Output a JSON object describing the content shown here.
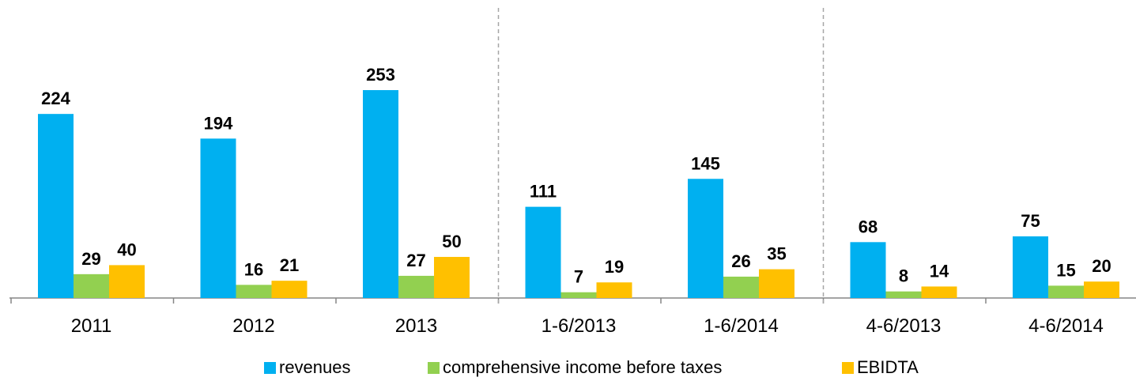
{
  "chart_data": {
    "type": "bar",
    "categories": [
      "2011",
      "2012",
      "2013",
      "1-6/2013",
      "1-6/2014",
      "4-6/2013",
      "4-6/2014"
    ],
    "series": [
      {
        "name": "revenues",
        "color": "#00B0F0",
        "values": [
          224,
          194,
          253,
          111,
          145,
          68,
          75
        ]
      },
      {
        "name": "comprehensive income before taxes",
        "color": "#92D050",
        "values": [
          29,
          16,
          27,
          7,
          26,
          8,
          15
        ]
      },
      {
        "name": "EBIDTA",
        "color": "#FFC000",
        "values": [
          40,
          21,
          50,
          19,
          35,
          14,
          20
        ]
      }
    ],
    "group_separators_after": [
      2,
      4
    ],
    "data_labels": true,
    "grid": false,
    "legend_position": "bottom",
    "ylim": [
      0,
      253
    ]
  }
}
